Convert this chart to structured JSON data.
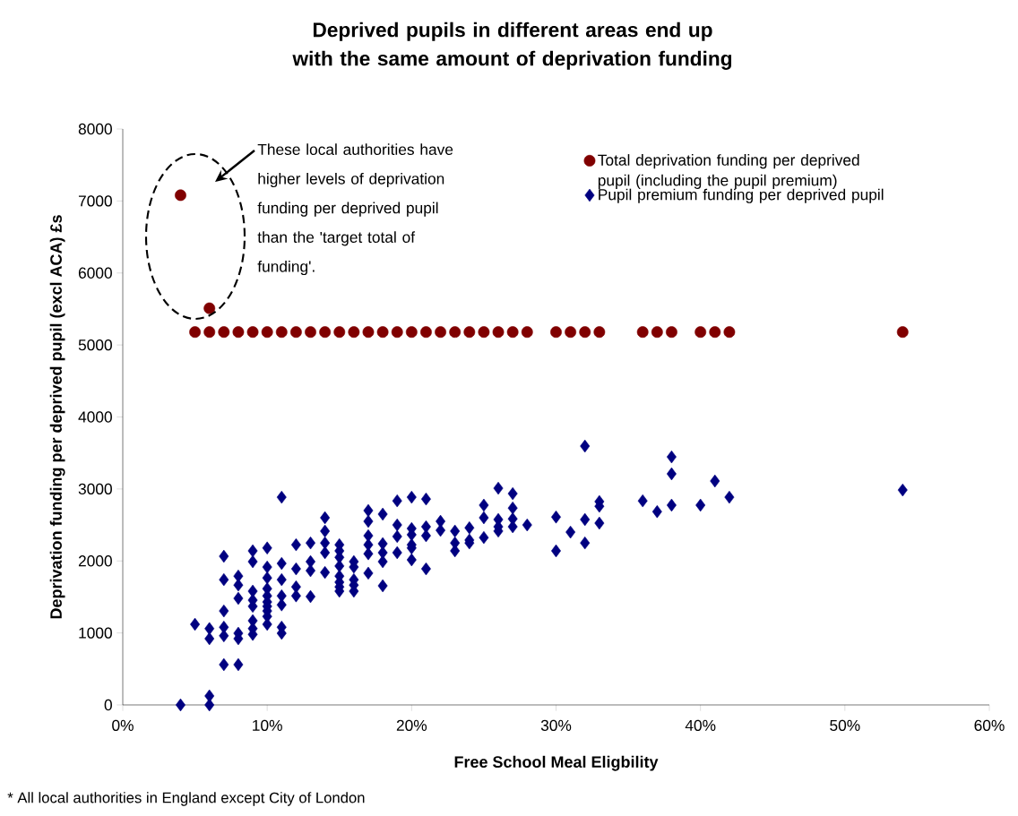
{
  "chart_data": {
    "type": "scatter",
    "title": "Deprived pupils in different areas end up with the same amount of deprivation funding",
    "xlabel": "Free School Meal Eligbility",
    "ylabel": "Deprivation funding per deprived pupil (excl ACA) £s",
    "xlim": [
      0,
      60
    ],
    "xticks": [
      {
        "value": 0,
        "label": "0%"
      },
      {
        "value": 10,
        "label": "10%"
      },
      {
        "value": 20,
        "label": "20%"
      },
      {
        "value": 30,
        "label": "30%"
      },
      {
        "value": 40,
        "label": "40%"
      },
      {
        "value": 50,
        "label": "50%"
      },
      {
        "value": 60,
        "label": "60%"
      }
    ],
    "ylim": [
      0,
      8000
    ],
    "yticks": [
      0,
      1000,
      2000,
      3000,
      4000,
      5000,
      6000,
      7000,
      8000
    ],
    "grid": false,
    "legend": "top right",
    "annotations": [
      "These local authorities have higher levels of deprivation funding per deprived pupil than the 'target total of funding'.",
      "* All local authorities in England except City of London"
    ],
    "series": [
      {
        "name": "Total deprivation funding per deprived pupil (including the pupil premium)",
        "color": "#800000",
        "marker": "circle",
        "x": [
          4,
          6,
          5,
          6,
          7,
          8,
          9,
          10,
          11,
          12,
          13,
          14,
          15,
          16,
          17,
          18,
          19,
          20,
          21,
          22,
          23,
          24,
          25,
          26,
          27,
          28,
          30,
          31,
          32,
          33,
          36,
          37,
          38,
          40,
          41,
          42,
          54
        ],
        "values": [
          7080,
          5510,
          5180,
          5180,
          5180,
          5180,
          5180,
          5180,
          5180,
          5180,
          5180,
          5180,
          5180,
          5180,
          5180,
          5180,
          5180,
          5180,
          5180,
          5180,
          5180,
          5180,
          5180,
          5180,
          5180,
          5180,
          5180,
          5180,
          5180,
          5180,
          5180,
          5180,
          5180,
          5180,
          5180,
          5180,
          5180
        ]
      },
      {
        "name": "Pupil premium funding per deprived pupil",
        "color": "#000080",
        "marker": "diamond",
        "x": [
          4,
          5,
          6,
          6,
          6,
          6,
          7,
          7,
          7,
          7,
          7,
          7,
          8,
          8,
          8,
          8,
          8,
          8,
          9,
          9,
          9,
          9,
          9,
          9,
          9,
          9,
          10,
          10,
          10,
          10,
          10,
          10,
          10,
          10,
          10,
          10,
          11,
          11,
          11,
          11,
          11,
          11,
          11,
          12,
          12,
          12,
          12,
          13,
          13,
          13,
          13,
          14,
          14,
          14,
          14,
          14,
          15,
          15,
          15,
          15,
          15,
          15,
          15,
          15,
          16,
          16,
          16,
          16,
          16,
          17,
          17,
          17,
          17,
          17,
          17,
          18,
          18,
          18,
          18,
          18,
          19,
          19,
          19,
          19,
          20,
          20,
          20,
          20,
          20,
          20,
          21,
          21,
          21,
          21,
          22,
          22,
          23,
          23,
          23,
          24,
          24,
          24,
          25,
          25,
          25,
          26,
          26,
          26,
          26,
          27,
          27,
          27,
          27,
          28,
          30,
          30,
          31,
          32,
          32,
          32,
          33,
          33,
          33,
          36,
          37,
          38,
          38,
          38,
          40,
          41,
          42,
          54
        ],
        "values": [
          0,
          1120,
          1060,
          920,
          125,
          0,
          2065,
          1740,
          1305,
          1080,
          960,
          560,
          1790,
          1665,
          1480,
          995,
          920,
          560,
          2140,
          1990,
          1580,
          1455,
          1370,
          1170,
          1060,
          980,
          2180,
          1915,
          1765,
          1615,
          1515,
          1430,
          1370,
          1305,
          1230,
          1120,
          2885,
          1965,
          1740,
          1515,
          1390,
          1080,
          995,
          2225,
          1890,
          1640,
          1515,
          2250,
          1990,
          1865,
          1505,
          2600,
          2415,
          2250,
          2115,
          1840,
          2225,
          2140,
          2050,
          1930,
          1790,
          1705,
          1640,
          1580,
          1990,
          1915,
          1740,
          1665,
          1580,
          2700,
          2550,
          2350,
          2225,
          2100,
          1830,
          2650,
          2240,
          2115,
          1990,
          1655,
          2835,
          2500,
          2340,
          2115,
          2885,
          2450,
          2365,
          2225,
          2180,
          2015,
          2860,
          2475,
          2350,
          1890,
          2550,
          2425,
          2415,
          2250,
          2140,
          2460,
          2290,
          2250,
          2775,
          2600,
          2325,
          3010,
          2575,
          2475,
          2415,
          2935,
          2735,
          2585,
          2475,
          2500,
          2610,
          2140,
          2400,
          3595,
          2575,
          2250,
          2825,
          2760,
          2525,
          2835,
          2685,
          3445,
          3210,
          2775,
          2775,
          3110,
          2885,
          2985
        ]
      }
    ]
  }
}
